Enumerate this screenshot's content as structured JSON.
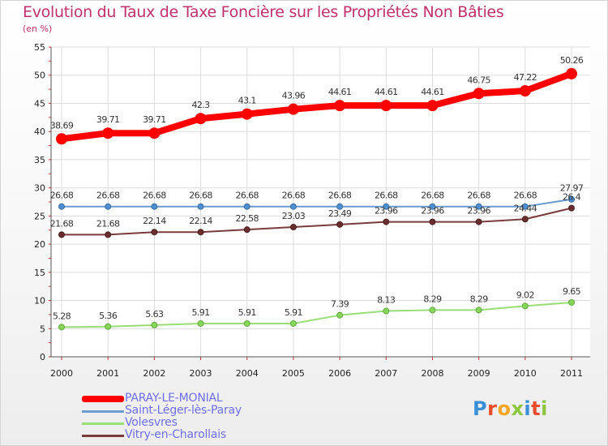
{
  "header": {
    "title": "Evolution du Taux de Taxe Foncière sur les Propriétés Non Bâties",
    "unit": "(en %)"
  },
  "logo": {
    "text": "Proxiti",
    "colors": [
      "#3a8fd8",
      "#e84c2b",
      "#f5a623",
      "#8cc63f",
      "#3a8fd8",
      "#e84c2b",
      "#8cc63f"
    ]
  },
  "chart_data": {
    "type": "line",
    "title": "Evolution du Taux de Taxe Foncière sur les Propriétés Non Bâties",
    "ylabel": "(en %)",
    "xlabel": "",
    "x": [
      "2000",
      "2001",
      "2002",
      "2003",
      "2004",
      "2005",
      "2006",
      "2007",
      "2008",
      "2009",
      "2010",
      "2011"
    ],
    "ylim": [
      0,
      55
    ],
    "yticks": [
      0,
      5,
      10,
      15,
      20,
      25,
      30,
      35,
      40,
      45,
      50,
      55
    ],
    "grid": true,
    "legend": "bottom-left",
    "series": [
      {
        "name": "PARAY-LE-MONIAL",
        "color": "#ff0000",
        "values": [
          38.69,
          39.71,
          39.71,
          42.3,
          43.1,
          43.96,
          44.61,
          44.61,
          44.61,
          46.75,
          47.22,
          50.26
        ],
        "labels": [
          "38.69",
          "39.71",
          "39.71",
          "42.3",
          "43.1",
          "43.96",
          "44.61",
          "44.61",
          "44.61",
          "46.75",
          "47.22",
          "50.26"
        ]
      },
      {
        "name": "Saint-Léger-lès-Paray",
        "color": "#6a9ccf",
        "values": [
          26.68,
          26.68,
          26.68,
          26.68,
          26.68,
          26.68,
          26.68,
          26.68,
          26.68,
          26.68,
          26.68,
          27.97
        ],
        "labels": [
          "26.68",
          "26.68",
          "26.68",
          "26.68",
          "26.68",
          "26.68",
          "26.68",
          "26.68",
          "26.68",
          "26.68",
          "26.68",
          "27.97"
        ]
      },
      {
        "name": "Volesvres",
        "color": "#99dd77",
        "values": [
          5.28,
          5.36,
          5.63,
          5.91,
          5.91,
          5.91,
          7.39,
          8.13,
          8.29,
          8.29,
          9.02,
          9.65
        ],
        "labels": [
          "5.28",
          "5.36",
          "5.63",
          "5.91",
          "5.91",
          "5.91",
          "7.39",
          "8.13",
          "8.29",
          "8.29",
          "9.02",
          "9.65"
        ]
      },
      {
        "name": "Vitry-en-Charollais",
        "color": "#7a3b3b",
        "values": [
          21.68,
          21.68,
          22.14,
          22.14,
          22.58,
          23.03,
          23.49,
          23.96,
          23.96,
          23.96,
          24.44,
          26.4
        ],
        "labels": [
          "21.68",
          "21.68",
          "22.14",
          "22.14",
          "22.58",
          "23.03",
          "23.49",
          "23.96",
          "23.96",
          "23.96",
          "24.44",
          "26.4"
        ]
      }
    ]
  }
}
